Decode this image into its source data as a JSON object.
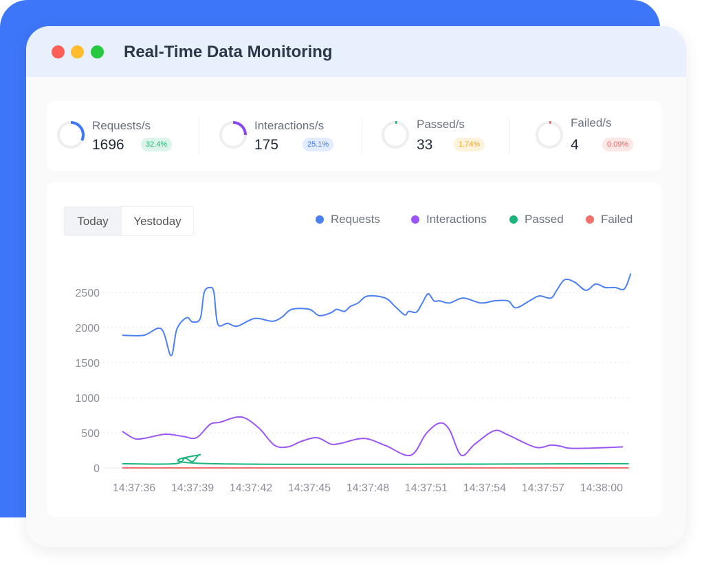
{
  "window": {
    "title": "Real-Time Data Monitoring",
    "dots": [
      "#fe5f57",
      "#febc2e",
      "#28c840"
    ]
  },
  "stats": [
    {
      "label": "Requests/s",
      "value": "1696",
      "badge": "32.4%",
      "pct": 32.4,
      "color": "#3d76f8",
      "badge_bg": "#dcf5ea",
      "badge_fg": "#22b573"
    },
    {
      "label": "Interactions/s",
      "value": "175",
      "badge": "25.1%",
      "pct": 25.1,
      "color": "#8b47f5",
      "badge_bg": "#e1ecfe",
      "badge_fg": "#3d76f8"
    },
    {
      "label": "Passed/s",
      "value": "33",
      "badge": "1.74%",
      "pct": 1.74,
      "color": "#16b57a",
      "badge_bg": "#fdf2dc",
      "badge_fg": "#f5a623"
    },
    {
      "label": "Failed/s",
      "value": "4",
      "badge": "0.09%",
      "pct": 0.09,
      "color": "#f0635e",
      "badge_bg": "#fde6e6",
      "badge_fg": "#f0635e"
    }
  ],
  "toggle": {
    "today": "Today",
    "yesterday": "Yestoday",
    "selected": "Today"
  },
  "chart_data": {
    "type": "line",
    "ylim": [
      0,
      2500
    ],
    "yticks": [
      "0",
      "500",
      "1000",
      "1500",
      "2000",
      "2500"
    ],
    "xticks": [
      "14:37:36",
      "14:37:39",
      "14:37:42",
      "14:37:45",
      "14:37:48",
      "14:37:51",
      "14:37:54",
      "14:37:57",
      "14:38:00"
    ],
    "grid": true,
    "legend_position": "top-right",
    "series": [
      {
        "name": "Requests",
        "color": "#4a7ff5",
        "points": [
          [
            "14:37:35.4",
            1890
          ],
          [
            "14:37:36.5",
            1890
          ],
          [
            "14:37:37.4",
            1980
          ],
          [
            "14:37:37.9",
            1600
          ],
          [
            "14:37:38.2",
            1980
          ],
          [
            "14:37:38.7",
            2140
          ],
          [
            "14:37:39.0",
            2080
          ],
          [
            "14:37:39.4",
            2130
          ],
          [
            "14:37:39.6",
            2500
          ],
          [
            "14:37:39.9",
            2570
          ],
          [
            "14:37:40.1",
            2500
          ],
          [
            "14:37:40.3",
            2050
          ],
          [
            "14:37:40.8",
            2060
          ],
          [
            "14:37:41.3",
            2020
          ],
          [
            "14:37:42.2",
            2130
          ],
          [
            "14:37:43.1",
            2090
          ],
          [
            "14:37:43.6",
            2150
          ],
          [
            "14:37:44.1",
            2260
          ],
          [
            "14:37:45.0",
            2260
          ],
          [
            "14:37:45.5",
            2170
          ],
          [
            "14:37:46.1",
            2210
          ],
          [
            "14:37:46.4",
            2260
          ],
          [
            "14:37:46.8",
            2230
          ],
          [
            "14:37:47.1",
            2300
          ],
          [
            "14:37:47.5",
            2350
          ],
          [
            "14:37:48.0",
            2450
          ],
          [
            "14:37:48.9",
            2420
          ],
          [
            "14:37:49.4",
            2300
          ],
          [
            "14:37:49.9",
            2180
          ],
          [
            "14:37:50.1",
            2230
          ],
          [
            "14:37:50.5",
            2220
          ],
          [
            "14:37:50.8",
            2350
          ],
          [
            "14:37:51.1",
            2480
          ],
          [
            "14:37:51.4",
            2380
          ],
          [
            "14:37:51.7",
            2380
          ],
          [
            "14:37:52.2",
            2350
          ],
          [
            "14:37:52.9",
            2420
          ],
          [
            "14:37:53.8",
            2350
          ],
          [
            "14:37:54.5",
            2380
          ],
          [
            "14:37:55.2",
            2380
          ],
          [
            "14:37:55.6",
            2280
          ],
          [
            "14:37:56.3",
            2380
          ],
          [
            "14:37:56.8",
            2450
          ],
          [
            "14:37:57.4",
            2420
          ],
          [
            "14:37:57.7",
            2530
          ],
          [
            "14:37:58.1",
            2680
          ],
          [
            "14:37:58.6",
            2650
          ],
          [
            "14:37:59.2",
            2530
          ],
          [
            "14:37:59.7",
            2620
          ],
          [
            "14:38:00.2",
            2570
          ],
          [
            "14:38:00.7",
            2570
          ],
          [
            "14:38:01.1",
            2540
          ],
          [
            "14:38:01.3",
            2610
          ],
          [
            "14:38:01.5",
            2770
          ]
        ]
      },
      {
        "name": "Interactions",
        "color": "#9b55f7",
        "points": [
          [
            "14:37:35.4",
            520
          ],
          [
            "14:37:36.0",
            420
          ],
          [
            "14:37:36.5",
            420
          ],
          [
            "14:37:37.6",
            480
          ],
          [
            "14:37:38.5",
            450
          ],
          [
            "14:37:39.2",
            430
          ],
          [
            "14:37:39.9",
            620
          ],
          [
            "14:37:40.4",
            650
          ],
          [
            "14:37:41.5",
            725
          ],
          [
            "14:37:42.4",
            570
          ],
          [
            "14:37:43.2",
            325
          ],
          [
            "14:37:43.9",
            300
          ],
          [
            "14:37:44.6",
            380
          ],
          [
            "14:37:45.4",
            430
          ],
          [
            "14:37:46.1",
            340
          ],
          [
            "14:37:46.6",
            350
          ],
          [
            "14:37:47.8",
            420
          ],
          [
            "14:37:48.9",
            320
          ],
          [
            "14:37:50.2",
            180
          ],
          [
            "14:37:51.0",
            490
          ],
          [
            "14:37:51.7",
            640
          ],
          [
            "14:37:52.2",
            540
          ],
          [
            "14:37:52.8",
            180
          ],
          [
            "14:37:53.5",
            340
          ],
          [
            "14:37:54.5",
            530
          ],
          [
            "14:37:55.2",
            470
          ],
          [
            "14:37:56.6",
            295
          ],
          [
            "14:37:57.4",
            325
          ],
          [
            "14:37:57.9",
            310
          ],
          [
            "14:37:58.4",
            280
          ],
          [
            "14:37:59.8",
            285
          ],
          [
            "14:38:01.1",
            300
          ]
        ]
      },
      {
        "name": "Passed",
        "color": "#1bb57c",
        "points": [
          [
            "14:37:35.4",
            60
          ],
          [
            "14:37:38.1",
            60
          ],
          [
            "14:37:38.6",
            140
          ],
          [
            "14:37:39.0",
            90
          ],
          [
            "14:37:39.4",
            190
          ],
          [
            "14:37:40.0",
            60
          ],
          [
            "14:38:01.4",
            60
          ]
        ]
      },
      {
        "name": "Failed",
        "color": "#f2716b",
        "points": [
          [
            "14:37:35.4",
            0
          ],
          [
            "14:38:01.4",
            0
          ]
        ]
      }
    ]
  }
}
